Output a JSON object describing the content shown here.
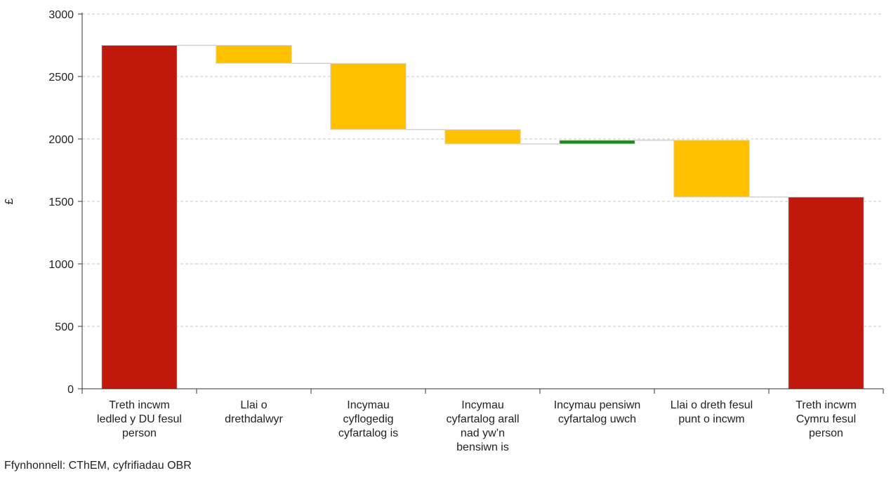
{
  "chart_data": {
    "type": "bar",
    "subtype": "waterfall",
    "ylabel": "£",
    "ylim": [
      0,
      3000
    ],
    "yticks": [
      0,
      500,
      1000,
      1500,
      2000,
      2500,
      3000
    ],
    "grid": true,
    "categories": [
      [
        "Treth incwm",
        "ledled y DU fesul",
        "person"
      ],
      [
        "Llai o",
        "drethdalwyr"
      ],
      [
        "Incymau",
        "cyflogedig",
        "cyfartalog is"
      ],
      [
        "Incymau",
        "cyfartalog arall",
        "nad yw’n",
        "bensiwn is"
      ],
      [
        "Incymau pensiwn",
        "cyfartalog uwch"
      ],
      [
        "Llai o dreth fesul",
        "punt o incwm"
      ],
      [
        "Treth incwm",
        "Cymru fesul",
        "person"
      ]
    ],
    "bars": [
      {
        "start": 0,
        "end": 2750,
        "kind": "total"
      },
      {
        "start": 2750,
        "end": 2605,
        "kind": "decrease"
      },
      {
        "start": 2605,
        "end": 2075,
        "kind": "decrease"
      },
      {
        "start": 2075,
        "end": 1960,
        "kind": "decrease"
      },
      {
        "start": 1960,
        "end": 1990,
        "kind": "increase"
      },
      {
        "start": 1990,
        "end": 1535,
        "kind": "decrease"
      },
      {
        "start": 0,
        "end": 1535,
        "kind": "total"
      }
    ],
    "colors": {
      "total": "#c0180a",
      "decrease": "#ffc000",
      "increase": "#1a8a1a",
      "grid": "#c8c8c8",
      "connector": "#d0d0d0"
    }
  },
  "source_note": "Ffynhonnell: CThEM, cyfrifiadau OBR"
}
